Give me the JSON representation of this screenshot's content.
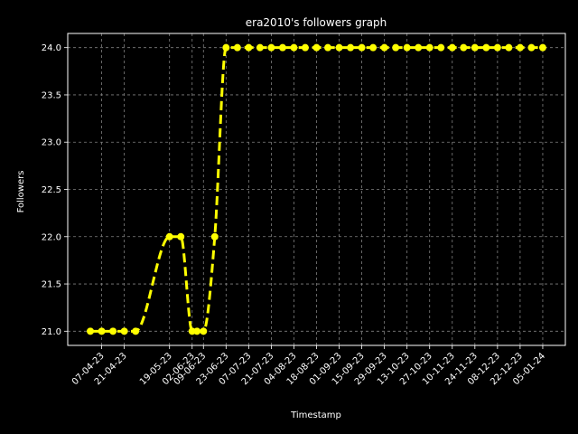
{
  "chart_data": {
    "type": "line",
    "title": "era2010's followers graph",
    "xlabel": "Timestamp",
    "ylabel": "Followers",
    "ylim": [
      20.85,
      24.15
    ],
    "yticks": [
      21.0,
      21.5,
      22.0,
      22.5,
      23.0,
      23.5,
      24.0
    ],
    "ytick_labels": [
      "21.0",
      "21.5",
      "22.0",
      "22.5",
      "23.0",
      "23.5",
      "24.0"
    ],
    "xtick_labels": [
      "07-04-23",
      "21-04-23",
      "19-05-23",
      "02-06-23",
      "09-06-23",
      "23-06-23",
      "07-07-23",
      "21-07-23",
      "04-08-23",
      "18-08-23",
      "01-09-23",
      "15-09-23",
      "29-09-23",
      "13-10-23",
      "27-10-23",
      "10-11-23",
      "24-11-23",
      "08-12-23",
      "22-12-23",
      "05-01-24"
    ],
    "series": [
      {
        "x": [
          "31-03-23",
          "07-04-23",
          "14-04-23",
          "21-04-23",
          "28-04-23",
          "19-05-23",
          "26-05-23",
          "02-06-23",
          "05-06-23",
          "09-06-23",
          "16-06-23",
          "23-06-23",
          "30-06-23",
          "07-07-23",
          "14-07-23",
          "21-07-23",
          "28-07-23",
          "04-08-23",
          "11-08-23",
          "18-08-23",
          "25-08-23",
          "01-09-23",
          "08-09-23",
          "15-09-23",
          "22-09-23",
          "29-09-23",
          "06-10-23",
          "13-10-23",
          "20-10-23",
          "27-10-23",
          "03-11-23",
          "10-11-23",
          "17-11-23",
          "24-11-23",
          "01-12-23",
          "08-12-23",
          "15-12-23",
          "22-12-23",
          "29-12-23",
          "05-01-24"
        ],
        "values": [
          21,
          21,
          21,
          21,
          21,
          22,
          22,
          21,
          21,
          21,
          22,
          24,
          24,
          24,
          24,
          24,
          24,
          24,
          24,
          24,
          24,
          24,
          24,
          24,
          24,
          24,
          24,
          24,
          24,
          24,
          24,
          24,
          24,
          24,
          24,
          24,
          24,
          24,
          24,
          24
        ]
      }
    ],
    "grid": true,
    "colors": {
      "background": "#000000",
      "line": "#ffff00",
      "marker": "#ffff00",
      "text": "#ffffff",
      "grid": "#808080"
    }
  }
}
